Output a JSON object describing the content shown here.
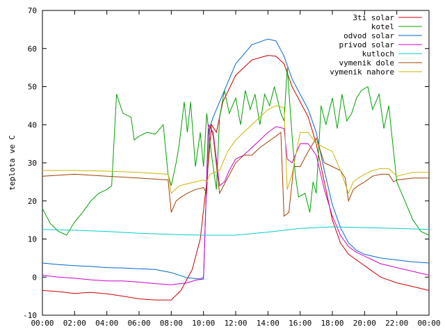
{
  "chart_data": {
    "type": "line",
    "title": "",
    "xlabel": "",
    "ylabel": "teplota ve C",
    "xlim": [
      0,
      24
    ],
    "ylim": [
      -10,
      70
    ],
    "grid": false,
    "legend_position": "top-right",
    "x_ticks": [
      "00:00",
      "02:00",
      "04:00",
      "06:00",
      "08:00",
      "10:00",
      "12:00",
      "14:00",
      "16:00",
      "18:00",
      "20:00",
      "22:00",
      "00:00"
    ],
    "y_ticks": [
      "-10",
      "0",
      "10",
      "20",
      "30",
      "40",
      "50",
      "60",
      "70"
    ],
    "series": [
      {
        "name": "3ti solar",
        "color": "#cc0000",
        "points": [
          [
            0,
            -3.5
          ],
          [
            1,
            -3.8
          ],
          [
            2,
            -4.3
          ],
          [
            3,
            -4
          ],
          [
            4,
            -4.4
          ],
          [
            5,
            -5
          ],
          [
            6,
            -5.7
          ],
          [
            7,
            -6
          ],
          [
            8,
            -6
          ],
          [
            8.6,
            -3.5
          ],
          [
            9.3,
            2
          ],
          [
            9.8,
            10
          ],
          [
            10.2,
            25
          ],
          [
            10.5,
            40
          ],
          [
            10.8,
            38
          ],
          [
            11.2,
            46
          ],
          [
            12,
            53
          ],
          [
            13,
            57
          ],
          [
            14,
            58.2
          ],
          [
            14.5,
            58
          ],
          [
            15,
            56
          ],
          [
            15.5,
            50
          ],
          [
            16,
            46
          ],
          [
            16.5,
            42
          ],
          [
            17,
            35
          ],
          [
            17.5,
            25
          ],
          [
            18,
            15
          ],
          [
            18.5,
            9
          ],
          [
            19,
            6
          ],
          [
            20,
            3
          ],
          [
            21,
            0
          ],
          [
            22,
            -1.5
          ],
          [
            23,
            -2.5
          ],
          [
            24,
            -3.5
          ]
        ]
      },
      {
        "name": "kotel",
        "color": "#00a000",
        "points": [
          [
            0,
            18
          ],
          [
            0.5,
            14
          ],
          [
            1,
            12
          ],
          [
            1.5,
            11
          ],
          [
            2,
            14.5
          ],
          [
            2.5,
            17
          ],
          [
            3,
            20
          ],
          [
            3.5,
            22
          ],
          [
            4,
            23
          ],
          [
            4.3,
            24
          ],
          [
            4.6,
            48
          ],
          [
            5,
            43
          ],
          [
            5.5,
            42
          ],
          [
            5.7,
            36
          ],
          [
            6,
            37
          ],
          [
            6.5,
            38
          ],
          [
            7,
            37.5
          ],
          [
            7.5,
            40
          ],
          [
            7.8,
            27
          ],
          [
            8,
            24
          ],
          [
            8.3,
            30
          ],
          [
            8.5,
            35
          ],
          [
            8.8,
            46
          ],
          [
            9,
            38
          ],
          [
            9.2,
            46
          ],
          [
            9.5,
            29
          ],
          [
            9.8,
            38
          ],
          [
            10,
            29
          ],
          [
            10.2,
            43
          ],
          [
            10.5,
            32
          ],
          [
            10.8,
            23
          ],
          [
            11,
            42
          ],
          [
            11.3,
            49
          ],
          [
            11.6,
            43
          ],
          [
            12,
            47
          ],
          [
            12.3,
            40
          ],
          [
            12.6,
            49
          ],
          [
            12.9,
            44
          ],
          [
            13.2,
            48
          ],
          [
            13.5,
            40
          ],
          [
            13.8,
            48
          ],
          [
            14.1,
            45
          ],
          [
            14.4,
            50
          ],
          [
            14.8,
            43
          ],
          [
            15,
            41
          ],
          [
            15.2,
            55
          ],
          [
            15.5,
            37
          ],
          [
            15.7,
            27
          ],
          [
            15.9,
            21
          ],
          [
            16.3,
            22
          ],
          [
            16.6,
            17
          ],
          [
            16.8,
            25
          ],
          [
            17,
            22
          ],
          [
            17.3,
            45
          ],
          [
            17.6,
            40
          ],
          [
            18,
            47
          ],
          [
            18.3,
            39
          ],
          [
            18.6,
            48
          ],
          [
            18.9,
            41
          ],
          [
            19.2,
            43
          ],
          [
            19.5,
            47
          ],
          [
            19.8,
            49
          ],
          [
            20.2,
            50
          ],
          [
            20.5,
            44
          ],
          [
            20.9,
            48
          ],
          [
            21.2,
            39
          ],
          [
            21.5,
            45
          ],
          [
            21.8,
            33
          ],
          [
            22,
            25
          ],
          [
            22.5,
            20
          ],
          [
            23,
            15
          ],
          [
            23.5,
            12
          ],
          [
            24,
            11
          ]
        ]
      },
      {
        "name": "odvod solar",
        "color": "#0066cc",
        "points": [
          [
            0,
            3.7
          ],
          [
            1,
            3.3
          ],
          [
            2,
            3
          ],
          [
            3,
            2.8
          ],
          [
            4,
            2.5
          ],
          [
            5,
            2.4
          ],
          [
            6,
            2.2
          ],
          [
            7,
            2
          ],
          [
            8,
            1.2
          ],
          [
            9,
            -0.2
          ],
          [
            9.8,
            -0.5
          ],
          [
            10,
            0
          ],
          [
            10.3,
            38
          ],
          [
            10.6,
            42
          ],
          [
            11,
            46
          ],
          [
            12,
            56
          ],
          [
            13,
            61
          ],
          [
            14,
            62.5
          ],
          [
            14.5,
            62
          ],
          [
            15,
            58
          ],
          [
            15.5,
            52
          ],
          [
            16,
            48
          ],
          [
            16.5,
            44
          ],
          [
            17,
            38
          ],
          [
            17.5,
            28
          ],
          [
            18,
            19
          ],
          [
            18.5,
            13
          ],
          [
            19,
            9
          ],
          [
            19.5,
            7
          ],
          [
            20,
            6
          ],
          [
            21,
            5
          ],
          [
            22,
            4.5
          ],
          [
            23,
            4
          ],
          [
            24,
            3.7
          ]
        ]
      },
      {
        "name": "privod solar",
        "color": "#cc00cc",
        "points": [
          [
            0,
            0.5
          ],
          [
            1,
            0
          ],
          [
            2,
            -0.3
          ],
          [
            3,
            -0.7
          ],
          [
            4,
            -1
          ],
          [
            5,
            -1
          ],
          [
            6,
            -1.3
          ],
          [
            7,
            -1.7
          ],
          [
            8,
            -2
          ],
          [
            9,
            -1.5
          ],
          [
            9.5,
            -0.8
          ],
          [
            10,
            -0.5
          ],
          [
            10.3,
            40
          ],
          [
            10.6,
            38
          ],
          [
            11,
            24
          ],
          [
            11.3,
            25
          ],
          [
            11.6,
            28
          ],
          [
            12,
            31
          ],
          [
            12.5,
            32
          ],
          [
            13,
            34
          ],
          [
            13.5,
            36
          ],
          [
            14,
            38
          ],
          [
            14.5,
            39.5
          ],
          [
            15,
            39
          ],
          [
            15.2,
            31
          ],
          [
            15.5,
            30
          ],
          [
            16,
            35
          ],
          [
            16.5,
            35
          ],
          [
            17,
            32
          ],
          [
            17.5,
            23
          ],
          [
            18,
            16
          ],
          [
            18.5,
            11
          ],
          [
            19,
            8
          ],
          [
            19.5,
            6.5
          ],
          [
            20,
            5.5
          ],
          [
            21,
            3.5
          ],
          [
            22,
            2.5
          ],
          [
            23,
            1.5
          ],
          [
            24,
            0.5
          ]
        ]
      },
      {
        "name": "kutloch",
        "color": "#00cccc",
        "points": [
          [
            0,
            12.5
          ],
          [
            2,
            12.3
          ],
          [
            4,
            12
          ],
          [
            6,
            11.5
          ],
          [
            8,
            11.2
          ],
          [
            10,
            11
          ],
          [
            12,
            11
          ],
          [
            14,
            11.8
          ],
          [
            16,
            12.8
          ],
          [
            18,
            13.2
          ],
          [
            20,
            13
          ],
          [
            22,
            12.8
          ],
          [
            24,
            12.5
          ]
        ]
      },
      {
        "name": "vymenik dole",
        "color": "#a04000",
        "points": [
          [
            0,
            26.5
          ],
          [
            2,
            27
          ],
          [
            4,
            26.5
          ],
          [
            6,
            26
          ],
          [
            7.8,
            25.5
          ],
          [
            8,
            17
          ],
          [
            8.3,
            20
          ],
          [
            8.6,
            21
          ],
          [
            9,
            22
          ],
          [
            9.5,
            23
          ],
          [
            10,
            23.5
          ],
          [
            10.2,
            22
          ],
          [
            10.4,
            40
          ],
          [
            10.6,
            37
          ],
          [
            11,
            22
          ],
          [
            11.5,
            26
          ],
          [
            12,
            30
          ],
          [
            12.5,
            32
          ],
          [
            13,
            32
          ],
          [
            13.5,
            34
          ],
          [
            14,
            35.5
          ],
          [
            14.5,
            37
          ],
          [
            14.8,
            38
          ],
          [
            15,
            16
          ],
          [
            15.3,
            17
          ],
          [
            15.6,
            29
          ],
          [
            16,
            29
          ],
          [
            16.5,
            33
          ],
          [
            17,
            36.5
          ],
          [
            17.5,
            30
          ],
          [
            18,
            29
          ],
          [
            18.5,
            28
          ],
          [
            18.8,
            26
          ],
          [
            19,
            20
          ],
          [
            19.3,
            23
          ],
          [
            19.6,
            24
          ],
          [
            20,
            25
          ],
          [
            20.5,
            26.5
          ],
          [
            21,
            27
          ],
          [
            21.5,
            27
          ],
          [
            21.8,
            25
          ],
          [
            22,
            25.5
          ],
          [
            23,
            26
          ],
          [
            24,
            26
          ]
        ]
      },
      {
        "name": "vymenik nahore",
        "color": "#c8b400",
        "points": [
          [
            0,
            28
          ],
          [
            2,
            28
          ],
          [
            4,
            27.8
          ],
          [
            6,
            27.5
          ],
          [
            7.8,
            27
          ],
          [
            8,
            22
          ],
          [
            8.5,
            24
          ],
          [
            9,
            24.5
          ],
          [
            9.5,
            25
          ],
          [
            10,
            25.5
          ],
          [
            10.2,
            25
          ],
          [
            10.4,
            27
          ],
          [
            11,
            28
          ],
          [
            11.5,
            33
          ],
          [
            12,
            36
          ],
          [
            12.5,
            38
          ],
          [
            13,
            40
          ],
          [
            13.5,
            42
          ],
          [
            14,
            44
          ],
          [
            14.5,
            45
          ],
          [
            15,
            44.5
          ],
          [
            15.2,
            23
          ],
          [
            15.5,
            27
          ],
          [
            16,
            38
          ],
          [
            16.5,
            38
          ],
          [
            17,
            35
          ],
          [
            17.5,
            34
          ],
          [
            18,
            33
          ],
          [
            18.5,
            28
          ],
          [
            19,
            22
          ],
          [
            19.3,
            25
          ],
          [
            19.6,
            26
          ],
          [
            20,
            27
          ],
          [
            20.5,
            28
          ],
          [
            21,
            28.5
          ],
          [
            21.5,
            28.5
          ],
          [
            22,
            26.5
          ],
          [
            23,
            27.5
          ],
          [
            24,
            27.5
          ]
        ]
      }
    ]
  }
}
